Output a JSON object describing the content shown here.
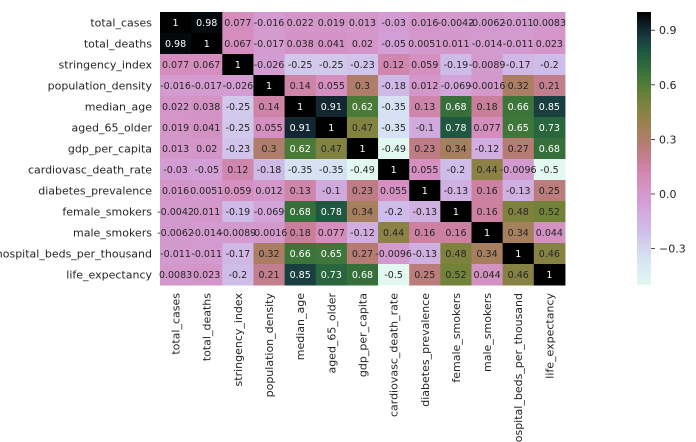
{
  "chart_data": {
    "type": "heatmap",
    "title": "",
    "colormap": "cubehelix_r",
    "vmin": -0.5,
    "vmax": 1.0,
    "labels": [
      "total_cases",
      "total_deaths",
      "stringency_index",
      "population_density",
      "median_age",
      "aged_65_older",
      "gdp_per_capita",
      "cardiovasc_death_rate",
      "diabetes_prevalence",
      "female_smokers",
      "male_smokers",
      "hospital_beds_per_thousand",
      "life_expectancy"
    ],
    "values": [
      [
        1,
        0.98,
        0.077,
        -0.016,
        0.022,
        0.019,
        0.013,
        -0.03,
        0.016,
        -0.0042,
        -0.0062,
        -0.011,
        0.0083
      ],
      [
        0.98,
        1,
        0.067,
        -0.017,
        0.038,
        0.041,
        0.02,
        -0.05,
        0.0051,
        0.011,
        -0.014,
        -0.011,
        0.023
      ],
      [
        0.077,
        0.067,
        1,
        -0.026,
        -0.25,
        -0.25,
        -0.23,
        0.12,
        0.059,
        -0.19,
        -0.0089,
        -0.17,
        -0.2
      ],
      [
        -0.016,
        -0.017,
        -0.026,
        1,
        0.14,
        0.055,
        0.3,
        -0.18,
        0.012,
        -0.069,
        -0.0016,
        0.32,
        0.21
      ],
      [
        0.022,
        0.038,
        -0.25,
        0.14,
        1,
        0.91,
        0.62,
        -0.35,
        0.13,
        0.68,
        0.18,
        0.66,
        0.85
      ],
      [
        0.019,
        0.041,
        -0.25,
        0.055,
        0.91,
        1,
        0.47,
        -0.35,
        -0.1,
        0.78,
        0.077,
        0.65,
        0.73
      ],
      [
        0.013,
        0.02,
        -0.23,
        0.3,
        0.62,
        0.47,
        1,
        -0.49,
        0.23,
        0.34,
        -0.12,
        0.27,
        0.68
      ],
      [
        -0.03,
        -0.05,
        0.12,
        -0.18,
        -0.35,
        -0.35,
        -0.49,
        1,
        0.055,
        -0.2,
        0.44,
        -0.0096,
        -0.5
      ],
      [
        0.016,
        0.0051,
        0.059,
        0.012,
        0.13,
        -0.1,
        0.23,
        0.055,
        1,
        -0.13,
        0.16,
        -0.13,
        0.25
      ],
      [
        -0.0042,
        0.011,
        -0.19,
        -0.069,
        0.68,
        0.78,
        0.34,
        -0.2,
        -0.13,
        1,
        0.16,
        0.48,
        0.52
      ],
      [
        -0.0062,
        -0.014,
        -0.0089,
        -0.0016,
        0.18,
        0.077,
        -0.12,
        0.44,
        0.16,
        0.16,
        1,
        0.34,
        0.044
      ],
      [
        -0.011,
        -0.011,
        -0.17,
        0.32,
        0.66,
        0.65,
        0.27,
        -0.0096,
        -0.13,
        0.48,
        0.34,
        1,
        0.46
      ],
      [
        0.0083,
        0.023,
        -0.2,
        0.21,
        0.85,
        0.73,
        0.68,
        -0.5,
        0.25,
        0.52,
        0.044,
        0.46,
        1
      ]
    ],
    "annotations": [
      [
        "1",
        "0.98",
        "0.077",
        "-0.016",
        "0.022",
        "0.019",
        "0.013",
        "-0.03",
        "0.016",
        "-0.0042",
        "-0.0062",
        "-0.011",
        "0.0083"
      ],
      [
        "0.98",
        "1",
        "0.067",
        "-0.017",
        "0.038",
        "0.041",
        "0.02",
        "-0.05",
        "0.0051",
        "0.011",
        "-0.014",
        "-0.011",
        "0.023"
      ],
      [
        "0.077",
        "0.067",
        "1",
        "-0.026",
        "-0.25",
        "-0.25",
        "-0.23",
        "0.12",
        "0.059",
        "-0.19",
        "-0.0089",
        "-0.17",
        "-0.2"
      ],
      [
        "-0.016",
        "-0.017",
        "-0.026",
        "1",
        "0.14",
        "0.055",
        "0.3",
        "-0.18",
        "0.012",
        "-0.069",
        "-0.0016",
        "0.32",
        "0.21"
      ],
      [
        "0.022",
        "0.038",
        "-0.25",
        "0.14",
        "1",
        "0.91",
        "0.62",
        "-0.35",
        "0.13",
        "0.68",
        "0.18",
        "0.66",
        "0.85"
      ],
      [
        "0.019",
        "0.041",
        "-0.25",
        "0.055",
        "0.91",
        "1",
        "0.47",
        "-0.35",
        "-0.1",
        "0.78",
        "0.077",
        "0.65",
        "0.73"
      ],
      [
        "0.013",
        "0.02",
        "-0.23",
        "0.3",
        "0.62",
        "0.47",
        "1",
        "-0.49",
        "0.23",
        "0.34",
        "-0.12",
        "0.27",
        "0.68"
      ],
      [
        "-0.03",
        "-0.05",
        "0.12",
        "-0.18",
        "-0.35",
        "-0.35",
        "-0.49",
        "1",
        "0.055",
        "-0.2",
        "0.44",
        "-0.0096",
        "-0.5"
      ],
      [
        "0.016",
        "0.0051",
        "0.059",
        "0.012",
        "0.13",
        "-0.1",
        "0.23",
        "0.055",
        "1",
        "-0.13",
        "0.16",
        "-0.13",
        "0.25"
      ],
      [
        "-0.0042",
        "0.011",
        "-0.19",
        "-0.069",
        "0.68",
        "0.78",
        "0.34",
        "-0.2",
        "-0.13",
        "1",
        "0.16",
        "0.48",
        "0.52"
      ],
      [
        "-0.0062",
        "-0.014",
        "-0.0089",
        "-0.0016",
        "0.18",
        "0.077",
        "-0.12",
        "0.44",
        "0.16",
        "0.16",
        "1",
        "0.34",
        "0.044"
      ],
      [
        "-0.011",
        "-0.011",
        "-0.17",
        "0.32",
        "0.66",
        "0.65",
        "0.27",
        "-0.0096",
        "-0.13",
        "0.48",
        "0.34",
        "1",
        "0.46"
      ],
      [
        "0.0083",
        "0.023",
        "-0.2",
        "0.21",
        "0.85",
        "0.73",
        "0.68",
        "-0.5",
        "0.25",
        "0.52",
        "0.044",
        "0.46",
        "1"
      ]
    ],
    "colorbar": {
      "ticks": [
        0.9,
        0.6,
        0.3,
        0.0,
        -0.3
      ],
      "tick_labels": [
        "0.9",
        "0.6",
        "0.3",
        "0.0",
        "−0.3"
      ]
    },
    "grid": false,
    "legend": "colorbar-right"
  }
}
